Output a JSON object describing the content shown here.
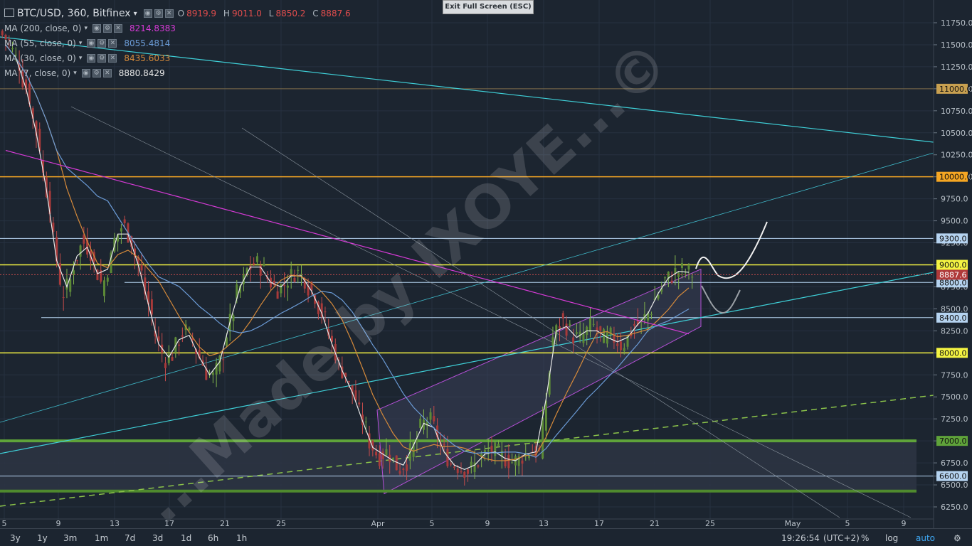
{
  "header": {
    "symbol": "BTC/USD, 360, Bitfinex",
    "o_label": "O",
    "o": "8919.9",
    "h_label": "H",
    "h": "9011.0",
    "l_label": "L",
    "l": "8850.2",
    "c_label": "C",
    "c": "8887.6"
  },
  "exit_button": "Exit Full Screen (ESC)",
  "indicators": [
    {
      "label": "MA (200, close, 0)",
      "value": "8214.8383",
      "color": "#d63ad6"
    },
    {
      "label": "MA (55, close, 0)",
      "value": "8055.4814",
      "color": "#6b9bd6"
    },
    {
      "label": "MA (30, close, 0)",
      "value": "8435.6033",
      "color": "#d68a3a"
    },
    {
      "label": "MA (7, close, 0)",
      "value": "8880.8429",
      "color": "#e8e8e8"
    }
  ],
  "watermark": "...Made by IXOYE...©",
  "bottom_bar": {
    "ranges": [
      "3y",
      "1y",
      "3m",
      "1m",
      "7d",
      "3d",
      "1d",
      "6h",
      "1h"
    ],
    "time": "19:26:54",
    "tz": "(UTC+2)",
    "pct": "%",
    "log": "log",
    "auto": "auto"
  },
  "chart_data": {
    "type": "candlestick",
    "symbol": "BTC/USD",
    "interval": "360",
    "exchange": "Bitfinex",
    "x_ticks": [
      "5",
      "9",
      "13",
      "17",
      "21",
      "25",
      "Apr",
      "5",
      "9",
      "13",
      "17",
      "21",
      "25",
      "May",
      "5",
      "9"
    ],
    "y_ticks": [
      "11750.0",
      "11500.0",
      "11250.0",
      "11000.0",
      "10750.0",
      "10500.0",
      "10250.0",
      "10000.0",
      "9750.0",
      "9500.0",
      "9250.0",
      "9000.0",
      "8750.0",
      "8500.0",
      "8250.0",
      "8000.0",
      "7750.0",
      "7500.0",
      "7250.0",
      "7000.0",
      "6750.0",
      "6600.0",
      "6500.0",
      "6250.0"
    ],
    "ylim": [
      6150,
      11900
    ],
    "last_price": "8887.6",
    "horizontal_levels": [
      {
        "label": "11000.0",
        "value": 11000,
        "color": "#c8a050"
      },
      {
        "label": "10000.0",
        "value": 10000,
        "color": "#f5a623"
      },
      {
        "label": "9300.0",
        "value": 9300,
        "color": "#b5d3f0"
      },
      {
        "label": "9000.0",
        "value": 9000,
        "color": "#f4f442"
      },
      {
        "label": "8800.0",
        "value": 8800,
        "color": "#b5d3f0"
      },
      {
        "label": "8400.0",
        "value": 8400,
        "color": "#b5d3f0"
      },
      {
        "label": "8000.0",
        "value": 8000,
        "color": "#f4f442"
      },
      {
        "label": "7000.0",
        "value": 7000,
        "color": "#5fa33a"
      },
      {
        "label": "6600.0",
        "value": 6600,
        "color": "#b5d3f0"
      }
    ],
    "ma_close": [
      {
        "name": "MA (7, close, 0)",
        "last": 8880.8429
      },
      {
        "name": "MA (30, close, 0)",
        "last": 8435.6033
      },
      {
        "name": "MA (55, close, 0)",
        "last": 8055.4814
      },
      {
        "name": "MA (200, close, 0)",
        "last": 8214.8383
      }
    ],
    "close_path": [
      11500,
      11200,
      10800,
      10200,
      9500,
      8600,
      8900,
      9300,
      9100,
      8700,
      9200,
      9500,
      9200,
      8800,
      8300,
      7900,
      8000,
      8300,
      8100,
      7800,
      7700,
      8100,
      8600,
      8900,
      9050,
      8900,
      8700,
      8800,
      8950,
      8800,
      8600,
      8300,
      7900,
      7700,
      7400,
      7050,
      6800,
      6900,
      6650,
      6800,
      7100,
      7300,
      7000,
      6750,
      6700,
      6650,
      6800,
      6900,
      6850,
      6750,
      6800,
      6900,
      6850,
      8100,
      8400,
      8200,
      8150,
      8350,
      8150,
      8200,
      8050,
      8300,
      8350,
      8550,
      8800,
      8900,
      8950,
      8880
    ]
  }
}
